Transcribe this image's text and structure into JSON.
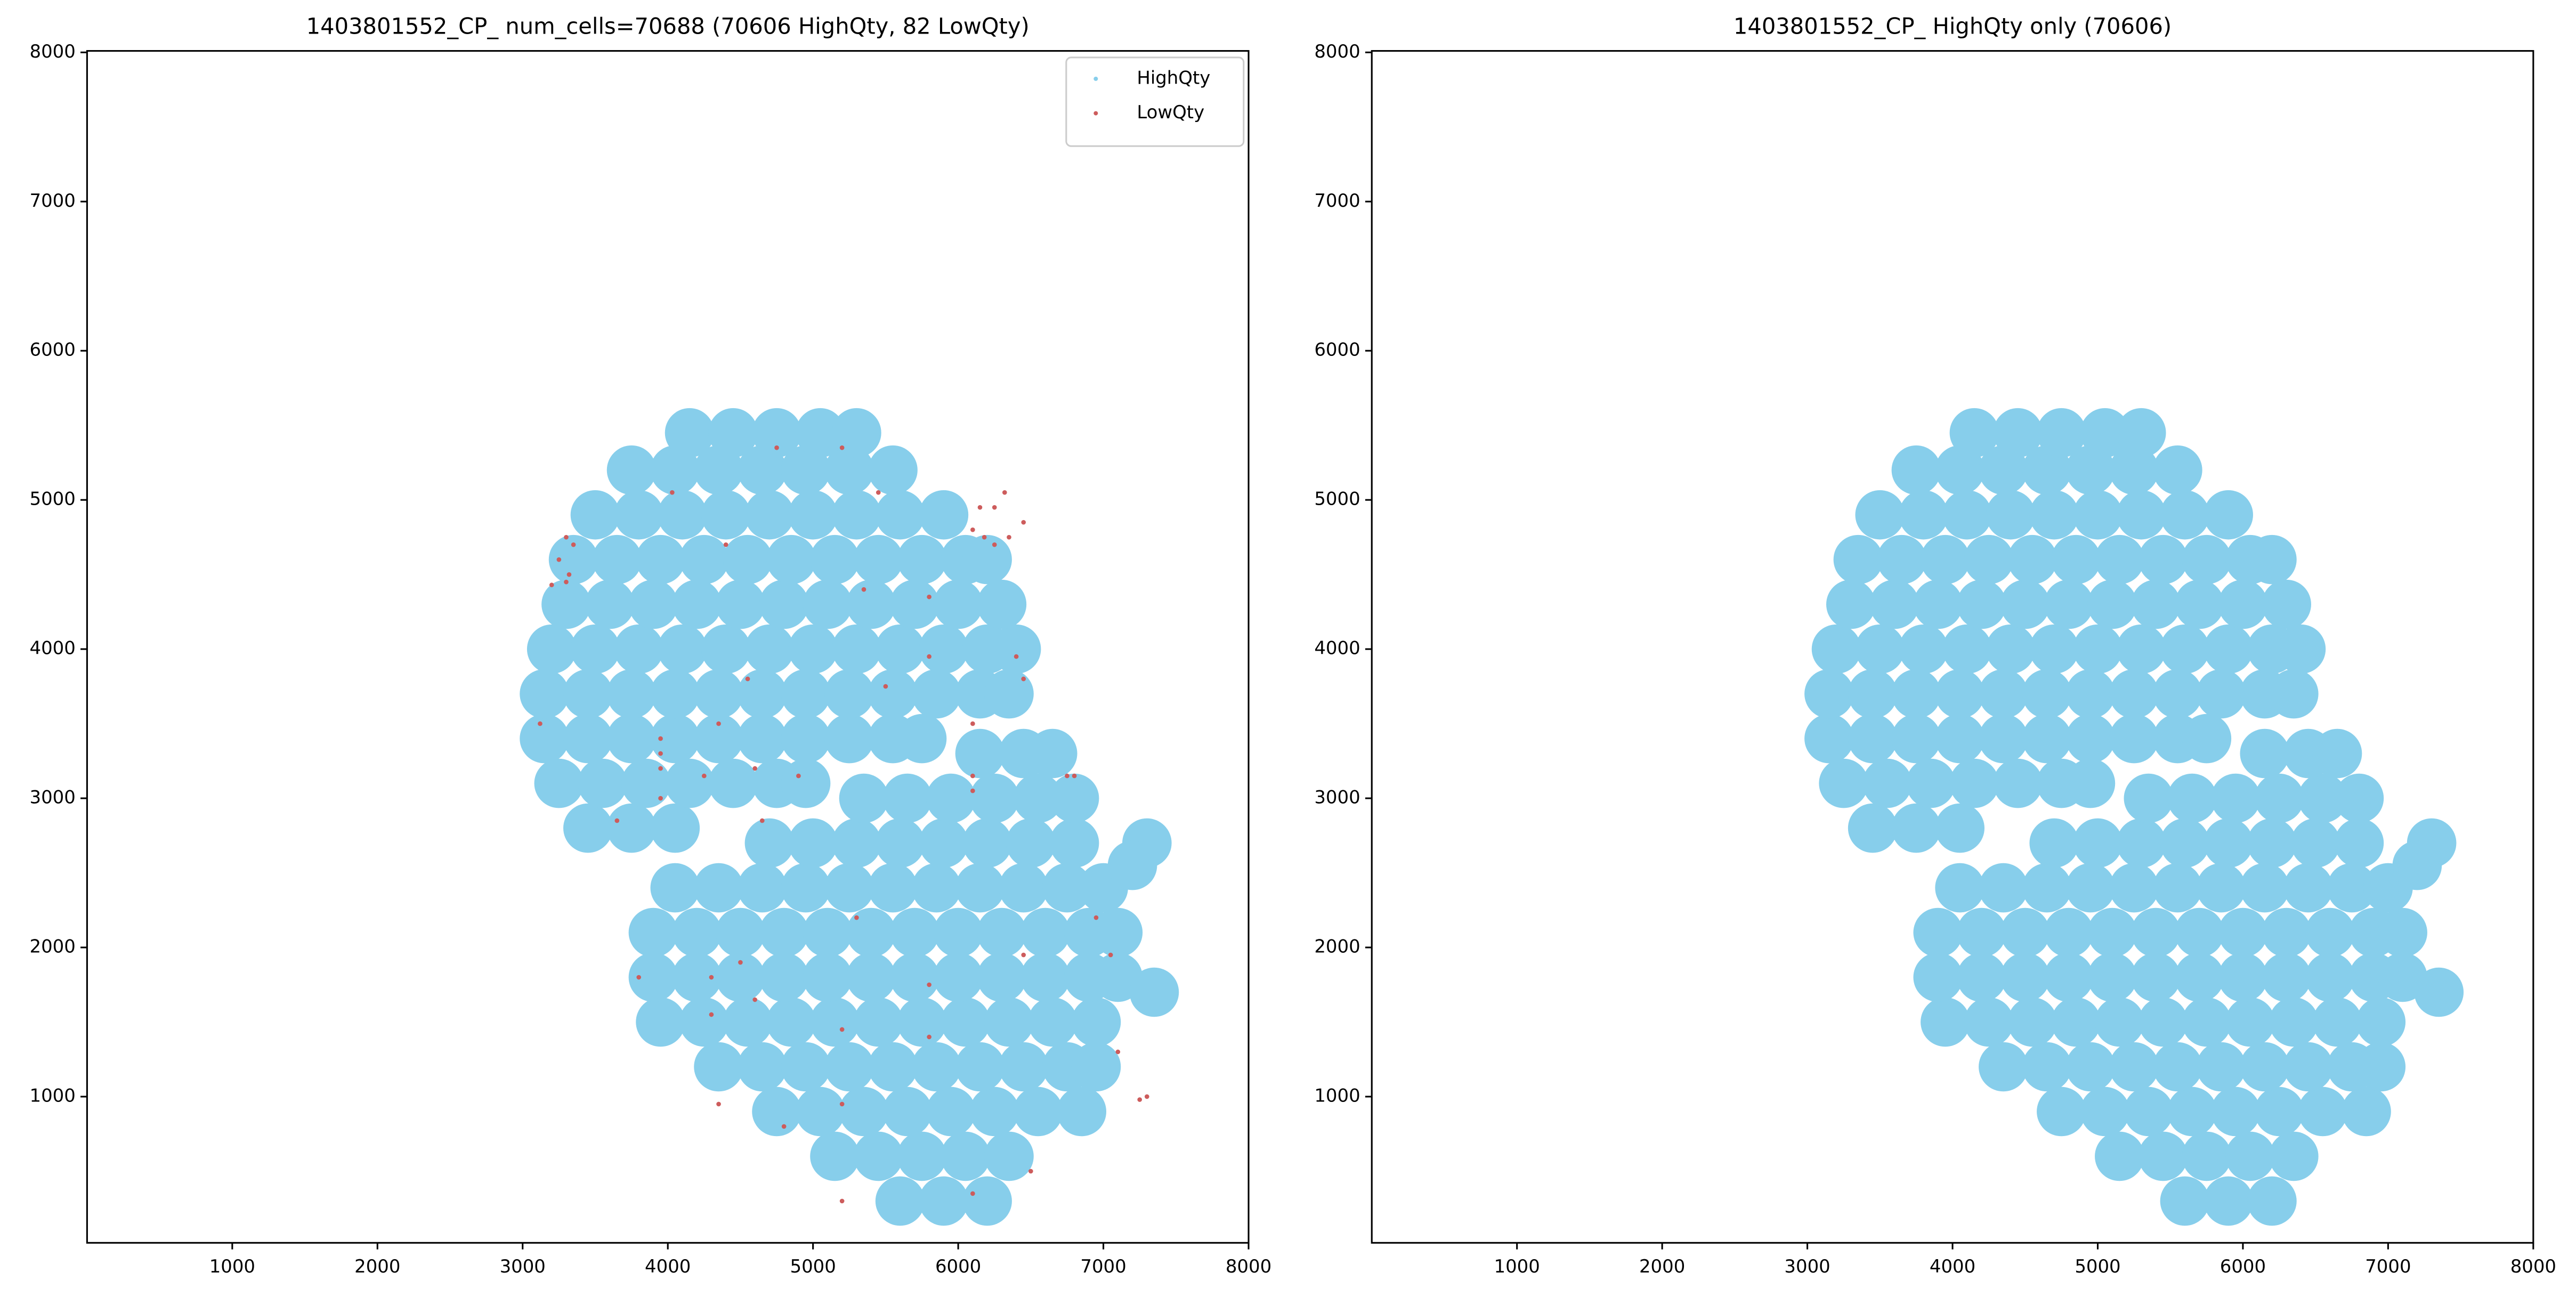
{
  "chart_data": [
    {
      "type": "scatter",
      "title": "1403801552_CP_ num_cells=70688 (70606 HighQty, 82 LowQty)",
      "xlim": [
        0,
        8000
      ],
      "ylim": [
        20,
        8010
      ],
      "xticks": [
        1000,
        2000,
        3000,
        4000,
        5000,
        6000,
        7000,
        8000
      ],
      "yticks": [
        1000,
        2000,
        3000,
        4000,
        5000,
        6000,
        7000,
        8000
      ],
      "legend": "upper right",
      "series": [
        {
          "name": "HighQty",
          "color": "#87ceeb",
          "x": [
            5600,
            5900,
            6200,
            5150,
            5450,
            5750,
            6050,
            6350,
            4750,
            5050,
            5350,
            5650,
            5950,
            6250,
            6550,
            6850,
            4350,
            4650,
            4950,
            5250,
            5550,
            5850,
            6150,
            6450,
            6750,
            6950,
            3950,
            4250,
            4550,
            4850,
            5150,
            5450,
            5750,
            6050,
            6350,
            6650,
            6950,
            3900,
            4200,
            4500,
            4800,
            5100,
            5400,
            5700,
            6000,
            6300,
            6600,
            6900,
            7100,
            3900,
            4200,
            4500,
            4800,
            5100,
            5400,
            5700,
            6000,
            6300,
            6600,
            6900,
            7100,
            4050,
            4350,
            4650,
            4950,
            5250,
            5550,
            5850,
            6150,
            6450,
            6750,
            7000,
            4700,
            5000,
            5300,
            5600,
            5900,
            6200,
            6500,
            6800,
            5350,
            5650,
            5950,
            6250,
            6550,
            6800,
            6150,
            6450,
            6650,
            3450,
            3750,
            4050,
            3250,
            3550,
            3850,
            4150,
            4450,
            4750,
            4950,
            3150,
            3450,
            3750,
            4050,
            4350,
            4650,
            4950,
            5250,
            5550,
            5750,
            3150,
            3450,
            3750,
            4050,
            4350,
            4650,
            4950,
            5250,
            5550,
            5850,
            6150,
            6350,
            3200,
            3500,
            3800,
            4100,
            4400,
            4700,
            5000,
            5300,
            5600,
            5900,
            6200,
            6400,
            3300,
            3600,
            3900,
            4200,
            4500,
            4800,
            5100,
            5400,
            5700,
            6000,
            6300,
            3350,
            3650,
            3950,
            4250,
            4550,
            4850,
            5150,
            5450,
            5750,
            6050,
            6200,
            3500,
            3800,
            4100,
            4400,
            4700,
            5000,
            5300,
            5600,
            5900,
            3750,
            4050,
            4350,
            4650,
            4950,
            5250,
            5550,
            4150,
            4450,
            4750,
            5050,
            5300,
            7300,
            7200,
            7350
          ],
          "y": [
            300,
            300,
            300,
            600,
            600,
            600,
            600,
            600,
            900,
            900,
            900,
            900,
            900,
            900,
            900,
            900,
            1200,
            1200,
            1200,
            1200,
            1200,
            1200,
            1200,
            1200,
            1200,
            1200,
            1500,
            1500,
            1500,
            1500,
            1500,
            1500,
            1500,
            1500,
            1500,
            1500,
            1500,
            1800,
            1800,
            1800,
            1800,
            1800,
            1800,
            1800,
            1800,
            1800,
            1800,
            1800,
            1800,
            2100,
            2100,
            2100,
            2100,
            2100,
            2100,
            2100,
            2100,
            2100,
            2100,
            2100,
            2100,
            2400,
            2400,
            2400,
            2400,
            2400,
            2400,
            2400,
            2400,
            2400,
            2400,
            2400,
            2700,
            2700,
            2700,
            2700,
            2700,
            2700,
            2700,
            2700,
            3000,
            3000,
            3000,
            3000,
            3000,
            3000,
            3300,
            3300,
            3300,
            2800,
            2800,
            2800,
            3100,
            3100,
            3100,
            3100,
            3100,
            3100,
            3100,
            3400,
            3400,
            3400,
            3400,
            3400,
            3400,
            3400,
            3400,
            3400,
            3400,
            3700,
            3700,
            3700,
            3700,
            3700,
            3700,
            3700,
            3700,
            3700,
            3700,
            3700,
            3700,
            4000,
            4000,
            4000,
            4000,
            4000,
            4000,
            4000,
            4000,
            4000,
            4000,
            4000,
            4000,
            4300,
            4300,
            4300,
            4300,
            4300,
            4300,
            4300,
            4300,
            4300,
            4300,
            4300,
            4600,
            4600,
            4600,
            4600,
            4600,
            4600,
            4600,
            4600,
            4600,
            4600,
            4600,
            4900,
            4900,
            4900,
            4900,
            4900,
            4900,
            4900,
            4900,
            4900,
            5200,
            5200,
            5200,
            5200,
            5200,
            5200,
            5200,
            5450,
            5450,
            5450,
            5450,
            5450,
            2700,
            2550,
            1700
          ]
        },
        {
          "name": "LowQty",
          "color": "#cd5c5c",
          "x": [
            3300,
            3350,
            3250,
            3320,
            3300,
            3200,
            3120,
            4030,
            4750,
            5200,
            5450,
            4400,
            5350,
            5800,
            6150,
            6250,
            6320,
            6450,
            6180,
            6250,
            6350,
            6100,
            6400,
            6450,
            5800,
            5500,
            4550,
            4350,
            3950,
            3950,
            3950,
            4250,
            4600,
            4900,
            3650,
            3950,
            4650,
            6100,
            6100,
            6100,
            6750,
            6800,
            6950,
            5300,
            5800,
            4300,
            4600,
            4300,
            4500,
            3800,
            5200,
            5800,
            4350,
            4800,
            5200,
            7300,
            7250,
            7100,
            6500,
            6100,
            5200,
            6450,
            7050
          ],
          "y": [
            4750,
            4700,
            4600,
            4500,
            4450,
            4430,
            3500,
            5050,
            5350,
            5350,
            5050,
            4700,
            4400,
            4350,
            4950,
            4950,
            5050,
            4850,
            4750,
            4700,
            4750,
            4800,
            3950,
            3800,
            3950,
            3750,
            3800,
            3500,
            3400,
            3300,
            3200,
            3150,
            3200,
            3150,
            2850,
            3000,
            2850,
            3500,
            3150,
            3050,
            3150,
            3150,
            2200,
            2200,
            1750,
            1800,
            1650,
            1550,
            1900,
            1800,
            1450,
            1400,
            950,
            800,
            950,
            1000,
            980,
            1300,
            500,
            350,
            300,
            1950,
            1950
          ]
        }
      ]
    },
    {
      "type": "scatter",
      "title": "1403801552_CP_ HighQty only (70606)",
      "xlim": [
        0,
        8000
      ],
      "ylim": [
        20,
        8010
      ],
      "xticks": [
        1000,
        2000,
        3000,
        4000,
        5000,
        6000,
        7000,
        8000
      ],
      "yticks": [
        1000,
        2000,
        3000,
        4000,
        5000,
        6000,
        7000,
        8000
      ],
      "series": [
        {
          "color": "#87ceeb",
          "x": [
            5600,
            5900,
            6200,
            5150,
            5450,
            5750,
            6050,
            6350,
            4750,
            5050,
            5350,
            5650,
            5950,
            6250,
            6550,
            6850,
            4350,
            4650,
            4950,
            5250,
            5550,
            5850,
            6150,
            6450,
            6750,
            6950,
            3950,
            4250,
            4550,
            4850,
            5150,
            5450,
            5750,
            6050,
            6350,
            6650,
            6950,
            3900,
            4200,
            4500,
            4800,
            5100,
            5400,
            5700,
            6000,
            6300,
            6600,
            6900,
            7100,
            3900,
            4200,
            4500,
            4800,
            5100,
            5400,
            5700,
            6000,
            6300,
            6600,
            6900,
            7100,
            4050,
            4350,
            4650,
            4950,
            5250,
            5550,
            5850,
            6150,
            6450,
            6750,
            7000,
            4700,
            5000,
            5300,
            5600,
            5900,
            6200,
            6500,
            6800,
            5350,
            5650,
            5950,
            6250,
            6550,
            6800,
            6150,
            6450,
            6650,
            3450,
            3750,
            4050,
            3250,
            3550,
            3850,
            4150,
            4450,
            4750,
            4950,
            3150,
            3450,
            3750,
            4050,
            4350,
            4650,
            4950,
            5250,
            5550,
            5750,
            3150,
            3450,
            3750,
            4050,
            4350,
            4650,
            4950,
            5250,
            5550,
            5850,
            6150,
            6350,
            3200,
            3500,
            3800,
            4100,
            4400,
            4700,
            5000,
            5300,
            5600,
            5900,
            6200,
            6400,
            3300,
            3600,
            3900,
            4200,
            4500,
            4800,
            5100,
            5400,
            5700,
            6000,
            6300,
            3350,
            3650,
            3950,
            4250,
            4550,
            4850,
            5150,
            5450,
            5750,
            6050,
            6200,
            3500,
            3800,
            4100,
            4400,
            4700,
            5000,
            5300,
            5600,
            5900,
            3750,
            4050,
            4350,
            4650,
            4950,
            5250,
            5550,
            4150,
            4450,
            4750,
            5050,
            5300,
            7300,
            7200,
            7350
          ],
          "y": [
            300,
            300,
            300,
            600,
            600,
            600,
            600,
            600,
            900,
            900,
            900,
            900,
            900,
            900,
            900,
            900,
            1200,
            1200,
            1200,
            1200,
            1200,
            1200,
            1200,
            1200,
            1200,
            1200,
            1500,
            1500,
            1500,
            1500,
            1500,
            1500,
            1500,
            1500,
            1500,
            1500,
            1500,
            1800,
            1800,
            1800,
            1800,
            1800,
            1800,
            1800,
            1800,
            1800,
            1800,
            1800,
            1800,
            2100,
            2100,
            2100,
            2100,
            2100,
            2100,
            2100,
            2100,
            2100,
            2100,
            2100,
            2100,
            2400,
            2400,
            2400,
            2400,
            2400,
            2400,
            2400,
            2400,
            2400,
            2400,
            2400,
            2700,
            2700,
            2700,
            2700,
            2700,
            2700,
            2700,
            2700,
            3000,
            3000,
            3000,
            3000,
            3000,
            3000,
            3300,
            3300,
            3300,
            2800,
            2800,
            2800,
            3100,
            3100,
            3100,
            3100,
            3100,
            3100,
            3100,
            3400,
            3400,
            3400,
            3400,
            3400,
            3400,
            3400,
            3400,
            3400,
            3400,
            3700,
            3700,
            3700,
            3700,
            3700,
            3700,
            3700,
            3700,
            3700,
            3700,
            3700,
            3700,
            4000,
            4000,
            4000,
            4000,
            4000,
            4000,
            4000,
            4000,
            4000,
            4000,
            4000,
            4000,
            4300,
            4300,
            4300,
            4300,
            4300,
            4300,
            4300,
            4300,
            4300,
            4300,
            4300,
            4600,
            4600,
            4600,
            4600,
            4600,
            4600,
            4600,
            4600,
            4600,
            4600,
            4600,
            4900,
            4900,
            4900,
            4900,
            4900,
            4900,
            4900,
            4900,
            4900,
            5200,
            5200,
            5200,
            5200,
            5200,
            5200,
            5200,
            5450,
            5450,
            5450,
            5450,
            5450,
            2700,
            2550,
            1700
          ]
        }
      ]
    }
  ]
}
